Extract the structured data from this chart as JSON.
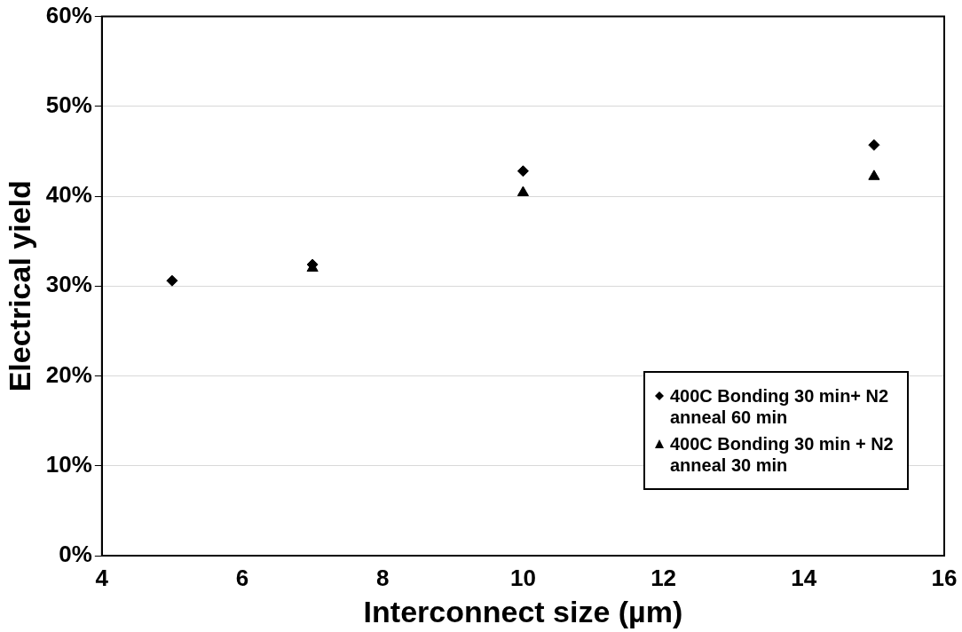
{
  "chart_data": {
    "type": "scatter",
    "xlabel": "Interconnect size (µm)",
    "ylabel": "Electrical yield",
    "x": [
      5,
      7,
      10,
      15
    ],
    "series": [
      {
        "name": "400C Bonding 30 min+ N2 anneal 60 min",
        "color": "#000000",
        "marker": "diamond",
        "values": [
          30.6,
          32.4,
          42.8,
          45.7
        ]
      },
      {
        "name": "400C Bonding 30 min + N2 anneal 30 min",
        "color": "#000000",
        "marker": "triangle",
        "values": [
          null,
          32.0,
          40.4,
          42.2
        ]
      }
    ],
    "xlim": [
      4,
      16
    ],
    "xticks": [
      4,
      6,
      8,
      10,
      12,
      14,
      16
    ],
    "ylim": [
      0,
      60
    ],
    "yticks": [
      {
        "value": 0,
        "label": "0%"
      },
      {
        "value": 10,
        "label": "10%"
      },
      {
        "value": 20,
        "label": "20%"
      },
      {
        "value": 30,
        "label": "30%"
      },
      {
        "value": 40,
        "label": "40%"
      },
      {
        "value": 50,
        "label": "50%"
      },
      {
        "value": 60,
        "label": "60%"
      }
    ],
    "grid": "y",
    "legend": "bottom right"
  }
}
